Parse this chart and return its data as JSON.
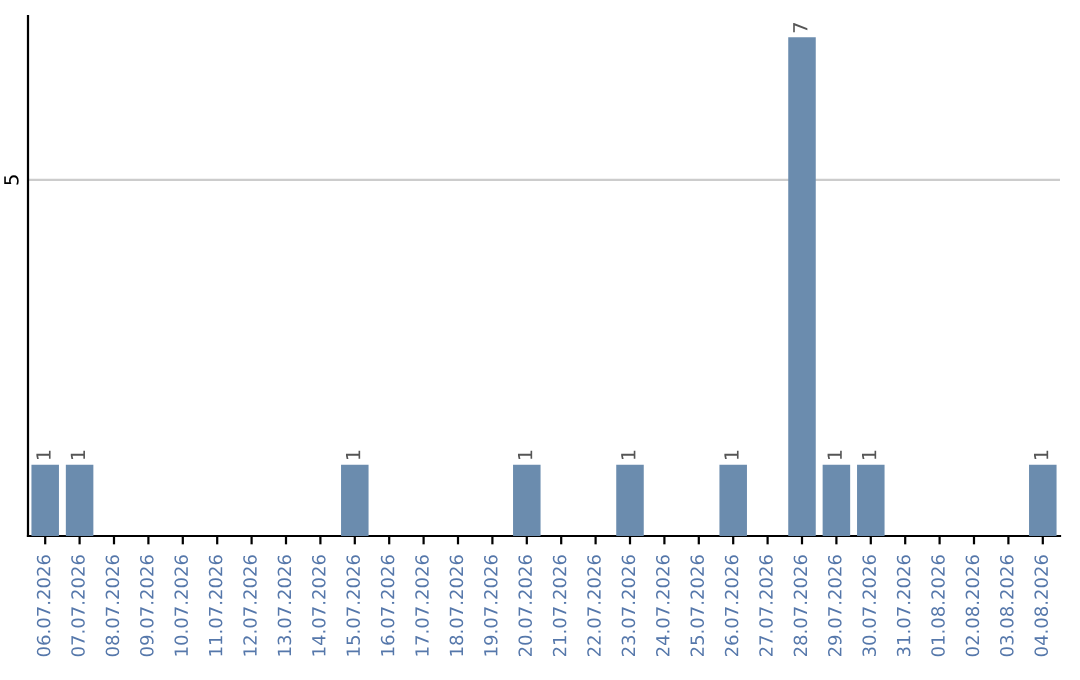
{
  "chart_data": {
    "type": "bar",
    "categories": [
      "06.07.2026",
      "07.07.2026",
      "08.07.2026",
      "09.07.2026",
      "10.07.2026",
      "11.07.2026",
      "12.07.2026",
      "13.07.2026",
      "14.07.2026",
      "15.07.2026",
      "16.07.2026",
      "17.07.2026",
      "18.07.2026",
      "19.07.2026",
      "20.07.2026",
      "21.07.2026",
      "22.07.2026",
      "23.07.2026",
      "24.07.2026",
      "25.07.2026",
      "26.07.2026",
      "27.07.2026",
      "28.07.2026",
      "29.07.2026",
      "30.07.2026",
      "31.07.2026",
      "01.08.2026",
      "02.08.2026",
      "03.08.2026",
      "04.08.2026"
    ],
    "values": [
      1,
      1,
      0,
      0,
      0,
      0,
      0,
      0,
      0,
      1,
      0,
      0,
      0,
      0,
      1,
      0,
      0,
      1,
      0,
      0,
      1,
      0,
      7,
      1,
      1,
      0,
      0,
      0,
      0,
      1
    ],
    "value_labels": [
      "1",
      "1",
      null,
      null,
      null,
      null,
      null,
      null,
      null,
      "1",
      null,
      null,
      null,
      null,
      "1",
      null,
      null,
      "1",
      null,
      null,
      "1",
      null,
      "7",
      "1",
      "1",
      null,
      null,
      null,
      null,
      "1"
    ],
    "color": "#6b8cae",
    "ylim": [
      0,
      7.3
    ],
    "yticks": [
      5
    ],
    "grid": "y",
    "legend": false
  }
}
